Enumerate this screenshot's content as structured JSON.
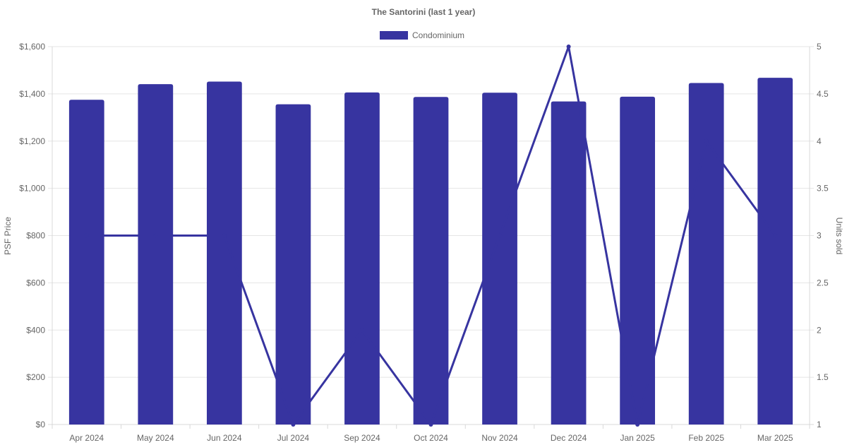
{
  "chart_data": {
    "type": "bar",
    "title": "The Santorini (last 1 year)",
    "categories": [
      "Apr 2024",
      "May 2024",
      "Jun 2024",
      "Jul 2024",
      "Sep 2024",
      "Oct 2024",
      "Nov 2024",
      "Dec 2024",
      "Jan 2025",
      "Feb 2025",
      "Mar 2025"
    ],
    "series": [
      {
        "name": "Condominium",
        "type": "bar",
        "axis": "left",
        "color": "#3734a0",
        "values": [
          1375,
          1441,
          1452,
          1356,
          1406,
          1387,
          1405,
          1368,
          1388,
          1446,
          1468
        ]
      },
      {
        "type": "line",
        "axis": "right",
        "color": "#3734a0",
        "values": [
          3,
          3,
          3,
          1,
          2,
          1,
          3,
          5,
          1,
          4,
          3
        ]
      }
    ],
    "ylabel": "PSF Price",
    "y2label": "Units sold",
    "ylim": [
      0,
      1600
    ],
    "y2lim": [
      1,
      5
    ],
    "yticks": [
      "$0",
      "$200",
      "$400",
      "$600",
      "$800",
      "$1,000",
      "$1,200",
      "$1,400",
      "$1,600"
    ],
    "y2ticks": [
      "1",
      "1.5",
      "2",
      "2.5",
      "3",
      "3.5",
      "4",
      "4.5",
      "5"
    ],
    "legend_position": "top",
    "grid": true
  }
}
